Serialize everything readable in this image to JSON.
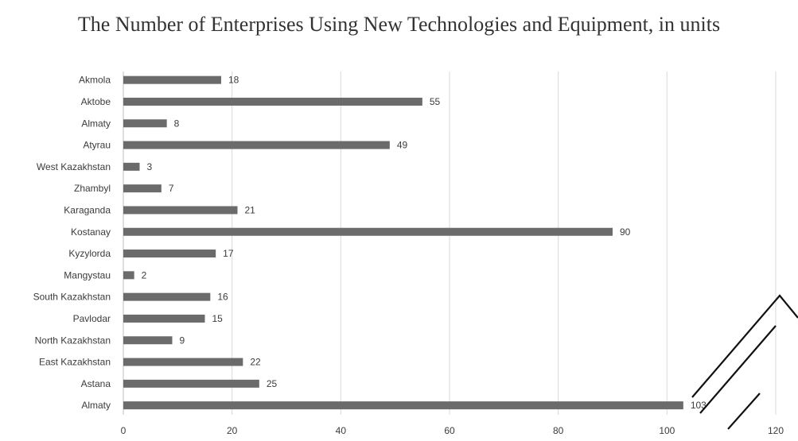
{
  "chart_data": {
    "type": "bar",
    "orientation": "horizontal",
    "title": "The Number of Enterprises Using New Technologies and Equipment, in units",
    "categories": [
      "Akmola",
      "Aktobe",
      "Almaty",
      "Atyrau",
      "West Kazakhstan",
      "Zhambyl",
      "Karaganda",
      "Kostanay",
      "Kyzylorda",
      "Mangystau",
      "South Kazakhstan",
      "Pavlodar",
      "North Kazakhstan",
      "East Kazakhstan",
      "Astana",
      "Almaty"
    ],
    "values": [
      18,
      55,
      8,
      49,
      3,
      7,
      21,
      90,
      17,
      2,
      16,
      15,
      9,
      22,
      25,
      103
    ],
    "xlim": [
      0,
      120
    ],
    "xticks": [
      0,
      20,
      40,
      60,
      80,
      100,
      120
    ],
    "bar_color": "#6b6b6b",
    "grid": "vertical",
    "legend": "none"
  }
}
